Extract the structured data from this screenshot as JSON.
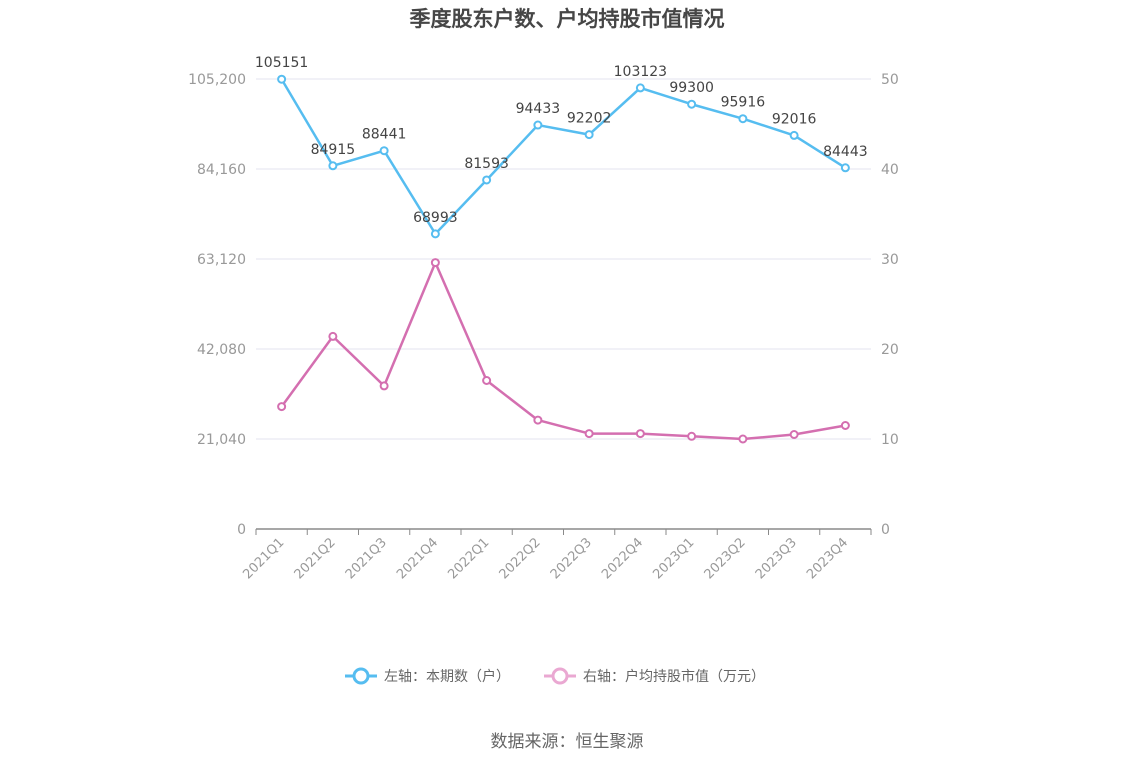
{
  "chart_data": {
    "type": "line",
    "title": "季度股东户数、户均持股市值情况",
    "categories": [
      "2021Q1",
      "2021Q2",
      "2021Q3",
      "2021Q4",
      "2022Q1",
      "2022Q2",
      "2022Q3",
      "2022Q4",
      "2023Q1",
      "2023Q2",
      "2023Q3",
      "2023Q4"
    ],
    "left_axis": {
      "min": 0,
      "max": 105200,
      "ticks": [
        "0",
        "21,040",
        "42,080",
        "63,120",
        "84,160",
        "105,200"
      ],
      "tick_values": [
        0,
        21040,
        42080,
        63120,
        84160,
        105200
      ]
    },
    "right_axis": {
      "min": 0,
      "max": 50,
      "ticks": [
        "0",
        "10",
        "20",
        "30",
        "40",
        "50"
      ],
      "tick_values": [
        0,
        10,
        20,
        30,
        40,
        50
      ]
    },
    "series": [
      {
        "name": "左轴：本期数（户）",
        "axis": "left",
        "color": "#56bdf0",
        "values": [
          105151,
          84915,
          88441,
          68993,
          81593,
          94433,
          92202,
          103123,
          99300,
          95916,
          92016,
          84443
        ],
        "labels": [
          "105151",
          "84915",
          "88441",
          "68993",
          "81593",
          "94433",
          "92202",
          "103123",
          "99300",
          "95916",
          "92016",
          "84443"
        ]
      },
      {
        "name": "右轴：户均持股市值（万元）",
        "axis": "right",
        "color": "#d46fb0",
        "legend_color": "#eaa8d2",
        "values": [
          13.6,
          21.4,
          15.9,
          29.6,
          16.5,
          12.1,
          10.6,
          10.6,
          10.3,
          10.0,
          10.5,
          11.5
        ]
      }
    ],
    "grid": true,
    "legend_position": "bottom"
  },
  "source_text": "数据来源：恒生聚源"
}
